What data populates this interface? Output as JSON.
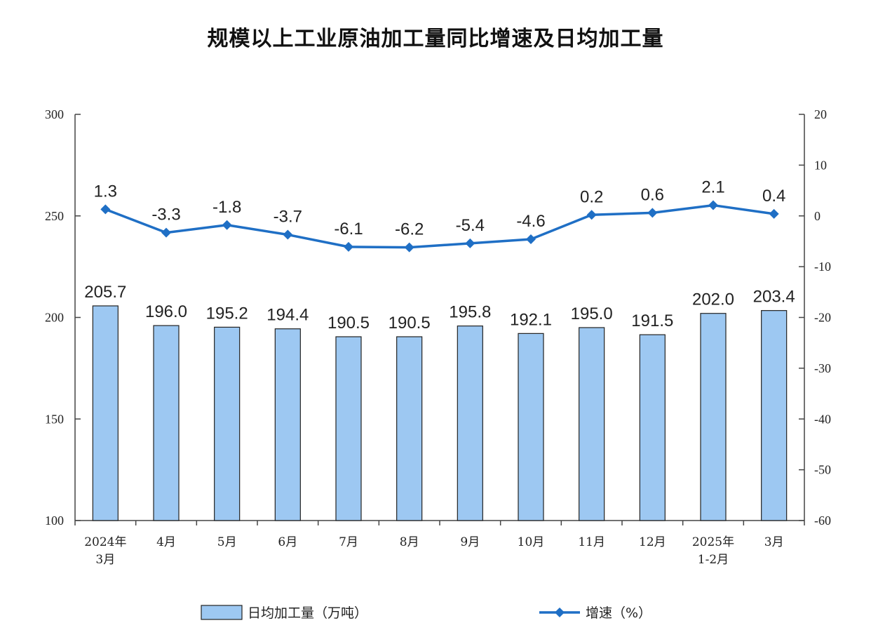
{
  "chart_data": {
    "title": "规模以上工业原油加工量同比增速及日均加工量",
    "type": "bar+line",
    "categories": [
      [
        "2024年",
        "3月"
      ],
      [
        "4月"
      ],
      [
        "5月"
      ],
      [
        "6月"
      ],
      [
        "7月"
      ],
      [
        "8月"
      ],
      [
        "9月"
      ],
      [
        "10月"
      ],
      [
        "11月"
      ],
      [
        "12月"
      ],
      [
        "2025年",
        "1-2月"
      ],
      [
        "3月"
      ]
    ],
    "series": [
      {
        "name": "日均加工量（万吨）",
        "type": "bar",
        "axis": "left",
        "color": "#9dc8f2",
        "values": [
          205.7,
          196.0,
          195.2,
          194.4,
          190.5,
          190.5,
          195.8,
          192.1,
          195.0,
          191.5,
          202.0,
          203.4
        ],
        "labels": [
          "205.7",
          "196.0",
          "195.2",
          "194.4",
          "190.5",
          "190.5",
          "195.8",
          "192.1",
          "195.0",
          "191.5",
          "202.0",
          "203.4"
        ]
      },
      {
        "name": "增速（%）",
        "type": "line",
        "axis": "right",
        "color": "#1f6fc5",
        "values": [
          1.3,
          -3.3,
          -1.8,
          -3.7,
          -6.1,
          -6.2,
          -5.4,
          -4.6,
          0.2,
          0.6,
          2.1,
          0.4
        ],
        "labels": [
          "1.3",
          "-3.3",
          "-1.8",
          "-3.7",
          "-6.1",
          "-6.2",
          "-5.4",
          "-4.6",
          "0.2",
          "0.6",
          "2.1",
          "0.4"
        ]
      }
    ],
    "y_left": {
      "min": 100,
      "max": 300,
      "ticks": [
        "300",
        "250",
        "200",
        "150",
        "100"
      ],
      "tick_values": [
        300,
        250,
        200,
        150,
        100
      ]
    },
    "y_right": {
      "min": -60,
      "max": 20,
      "ticks": [
        "20",
        "10",
        "0",
        "-10",
        "-20",
        "-30",
        "-40",
        "-50",
        "-60"
      ],
      "tick_values": [
        20,
        10,
        0,
        -10,
        -20,
        -30,
        -40,
        -50,
        -60
      ]
    },
    "legend": {
      "placement": "bottom-center"
    },
    "grid": false
  }
}
